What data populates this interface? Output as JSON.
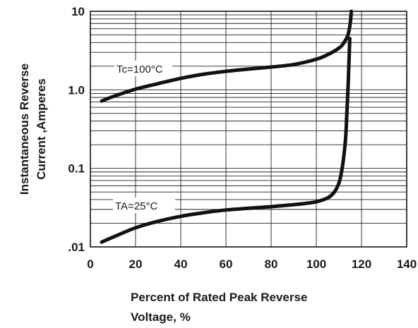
{
  "chart_data": {
    "type": "line",
    "title": "",
    "xlabel_line1": "Percent of Rated Peak Reverse",
    "xlabel_line2": "Voltage, %",
    "ylabel_line1": "Instantaneous Reverse",
    "ylabel_line2": "Current ,Amperes",
    "y_scale": "log",
    "xlim": [
      0,
      140
    ],
    "ylim": [
      0.01,
      10
    ],
    "x_ticks": [
      0,
      20,
      40,
      60,
      80,
      100,
      120,
      140
    ],
    "x_tick_labels": [
      "0",
      "20",
      "40",
      "60",
      "80",
      "100",
      "120",
      "140"
    ],
    "y_ticks": [
      0.01,
      0.1,
      1.0,
      10
    ],
    "y_tick_labels": [
      ".01",
      "0.1",
      "1.0",
      "10"
    ],
    "grid": true,
    "series": [
      {
        "name": "Tc=100°C",
        "x": [
          5,
          10,
          20,
          30,
          40,
          50,
          60,
          70,
          80,
          90,
          100,
          105,
          110,
          112,
          114,
          115,
          115.5
        ],
        "y": [
          0.72,
          0.82,
          1.02,
          1.2,
          1.4,
          1.58,
          1.72,
          1.84,
          1.95,
          2.1,
          2.45,
          2.8,
          3.4,
          3.9,
          5.0,
          7.0,
          10
        ]
      },
      {
        "name": "TA=25°C",
        "x": [
          5,
          10,
          20,
          30,
          40,
          50,
          60,
          70,
          80,
          90,
          95,
          100,
          105,
          108,
          110,
          111,
          112,
          113,
          113.5,
          114,
          114.5,
          114.8
        ],
        "y": [
          0.0115,
          0.0133,
          0.0175,
          0.0212,
          0.0245,
          0.0272,
          0.0295,
          0.031,
          0.0325,
          0.0345,
          0.0357,
          0.0375,
          0.042,
          0.05,
          0.065,
          0.085,
          0.13,
          0.25,
          0.5,
          1.0,
          2.5,
          4.5
        ]
      }
    ]
  },
  "annotations": {
    "tc": {
      "label": "Tc=100°C"
    },
    "ta": {
      "label": "TA=25°C"
    }
  }
}
